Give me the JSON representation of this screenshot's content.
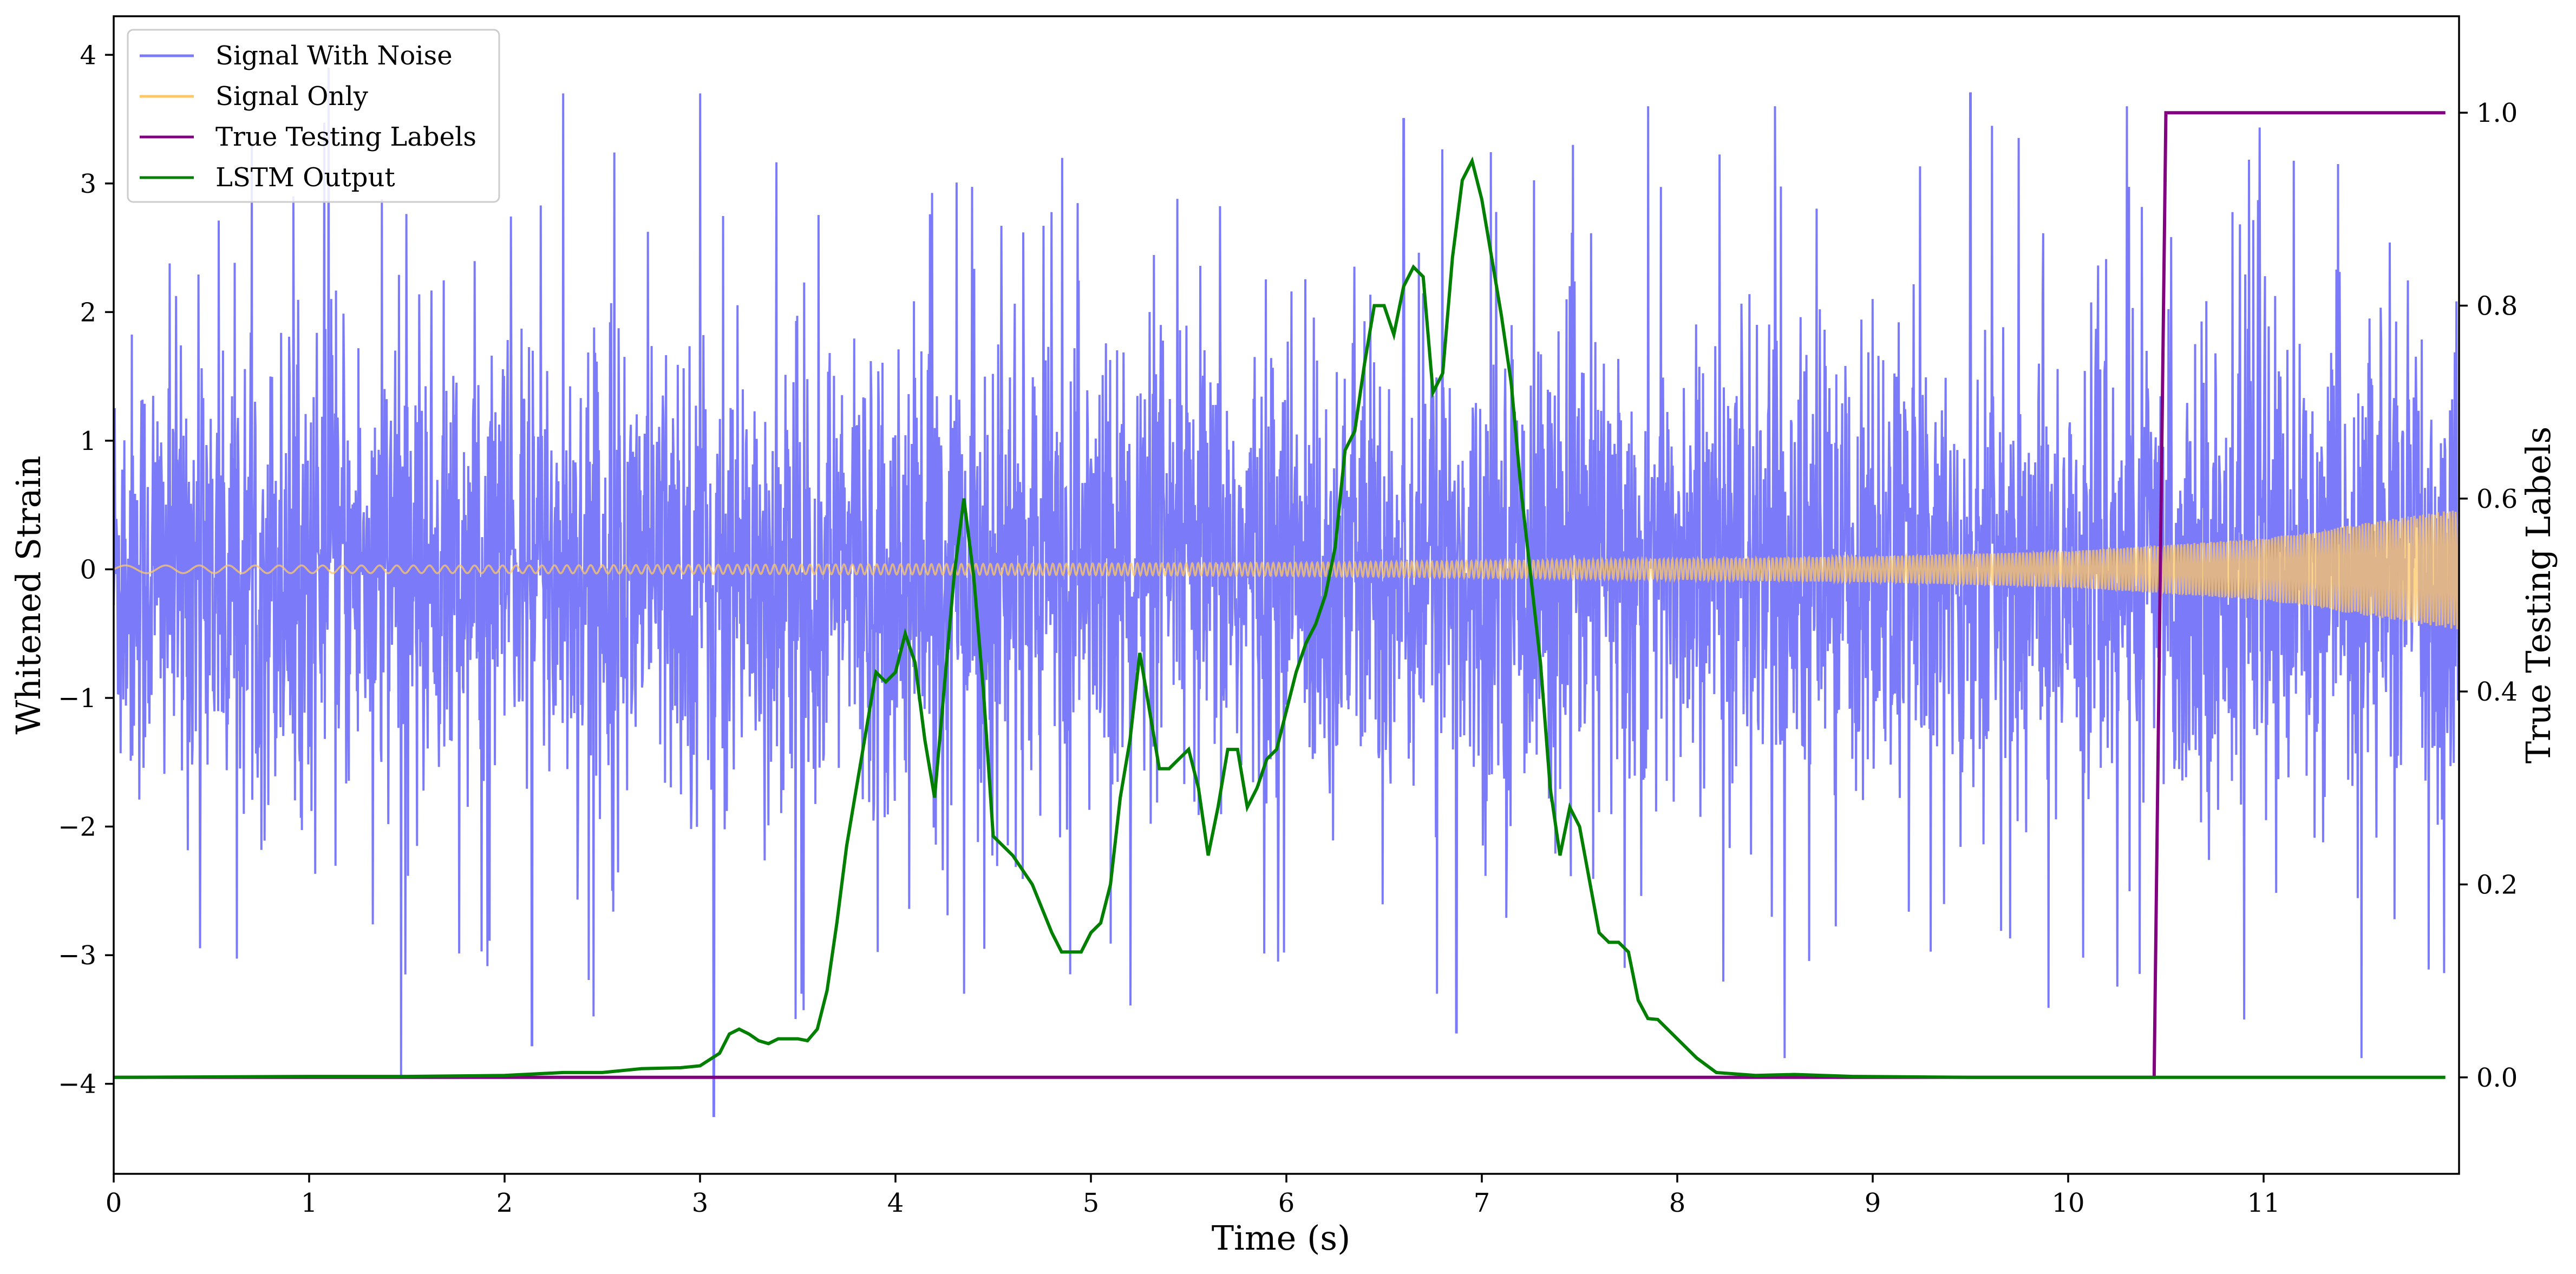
{
  "chart_data": {
    "type": "line",
    "xlabel": "Time (s)",
    "ylabel_left": "Whitened Strain",
    "ylabel_right": "True Testing Labels",
    "xlim": [
      0,
      12
    ],
    "ylim_left": [
      -4.7,
      4.3
    ],
    "ylim_right": [
      -0.1,
      1.1
    ],
    "x_ticks": [
      0,
      1,
      2,
      3,
      4,
      5,
      6,
      7,
      8,
      9,
      10,
      11
    ],
    "y_ticks_left": [
      -4,
      -3,
      -2,
      -1,
      0,
      1,
      2,
      3,
      4
    ],
    "y_ticks_right": [
      0.0,
      0.2,
      0.4,
      0.6,
      0.8,
      1.0
    ],
    "x_tick_labels": [
      "0",
      "1",
      "2",
      "3",
      "4",
      "5",
      "6",
      "7",
      "8",
      "9",
      "10",
      "11"
    ],
    "y_tick_labels_left": [
      "−4",
      "−3",
      "−2",
      "−1",
      "0",
      "1",
      "2",
      "3",
      "4"
    ],
    "y_tick_labels_right": [
      "0.0",
      "0.2",
      "0.4",
      "0.6",
      "0.8",
      "1.0"
    ],
    "grid": false,
    "legend_position": "top-left",
    "series": [
      {
        "name": "Signal With Noise",
        "axis": "left",
        "color": "#7b7bf9",
        "note": "dense noisy strain, approx std 0.9, peaks near ±3.7",
        "spikes": [
          [
            1.47,
            -3.95
          ],
          [
            2.14,
            -3.7
          ],
          [
            3.07,
            -4.25
          ],
          [
            3.52,
            -3.3
          ],
          [
            4.35,
            -3.3
          ],
          [
            6.77,
            -3.3
          ],
          [
            6.87,
            -3.6
          ],
          [
            8.55,
            -3.8
          ],
          [
            10.9,
            -3.5
          ],
          [
            11.5,
            -3.8
          ],
          [
            1.1,
            3.9
          ],
          [
            2.3,
            3.7
          ],
          [
            3.0,
            3.7
          ],
          [
            7.85,
            3.6
          ],
          [
            8.5,
            3.6
          ],
          [
            9.5,
            3.7
          ],
          [
            10.3,
            3.6
          ],
          [
            6.6,
            3.5
          ]
        ]
      },
      {
        "name": "Signal Only",
        "axis": "left",
        "color": "#ffc864",
        "note": "chirp with amplitude growing from 0.03 at t=0 to 0.47 at t=12",
        "envelope": [
          [
            0,
            0.03
          ],
          [
            2,
            0.03
          ],
          [
            4,
            0.04
          ],
          [
            6,
            0.05
          ],
          [
            8,
            0.08
          ],
          [
            9,
            0.1
          ],
          [
            10,
            0.14
          ],
          [
            11,
            0.24
          ],
          [
            12,
            0.47
          ]
        ]
      },
      {
        "name": "True Testing Labels",
        "axis": "right",
        "color": "#800080",
        "points": [
          [
            0,
            0.0
          ],
          [
            10.44,
            0.0
          ],
          [
            10.5,
            1.0
          ],
          [
            11.93,
            1.0
          ]
        ]
      },
      {
        "name": "LSTM Output",
        "axis": "right",
        "color": "#007f00",
        "points": [
          [
            0.0,
            0.0
          ],
          [
            1.0,
            0.001
          ],
          [
            1.5,
            0.001
          ],
          [
            2.0,
            0.002
          ],
          [
            2.3,
            0.005
          ],
          [
            2.5,
            0.005
          ],
          [
            2.7,
            0.009
          ],
          [
            2.9,
            0.01
          ],
          [
            3.0,
            0.012
          ],
          [
            3.1,
            0.025
          ],
          [
            3.15,
            0.045
          ],
          [
            3.2,
            0.05
          ],
          [
            3.25,
            0.045
          ],
          [
            3.3,
            0.038
          ],
          [
            3.35,
            0.035
          ],
          [
            3.4,
            0.04
          ],
          [
            3.45,
            0.04
          ],
          [
            3.5,
            0.04
          ],
          [
            3.55,
            0.038
          ],
          [
            3.6,
            0.05
          ],
          [
            3.65,
            0.09
          ],
          [
            3.7,
            0.16
          ],
          [
            3.75,
            0.24
          ],
          [
            3.8,
            0.3
          ],
          [
            3.85,
            0.36
          ],
          [
            3.9,
            0.42
          ],
          [
            3.95,
            0.41
          ],
          [
            4.0,
            0.42
          ],
          [
            4.05,
            0.46
          ],
          [
            4.1,
            0.43
          ],
          [
            4.15,
            0.35
          ],
          [
            4.2,
            0.29
          ],
          [
            4.3,
            0.52
          ],
          [
            4.35,
            0.6
          ],
          [
            4.4,
            0.52
          ],
          [
            4.45,
            0.4
          ],
          [
            4.5,
            0.25
          ],
          [
            4.6,
            0.23
          ],
          [
            4.7,
            0.2
          ],
          [
            4.8,
            0.15
          ],
          [
            4.85,
            0.13
          ],
          [
            4.95,
            0.13
          ],
          [
            5.0,
            0.15
          ],
          [
            5.05,
            0.16
          ],
          [
            5.1,
            0.2
          ],
          [
            5.15,
            0.29
          ],
          [
            5.2,
            0.35
          ],
          [
            5.25,
            0.44
          ],
          [
            5.3,
            0.38
          ],
          [
            5.35,
            0.32
          ],
          [
            5.4,
            0.32
          ],
          [
            5.45,
            0.33
          ],
          [
            5.5,
            0.34
          ],
          [
            5.55,
            0.3
          ],
          [
            5.6,
            0.23
          ],
          [
            5.65,
            0.28
          ],
          [
            5.7,
            0.34
          ],
          [
            5.75,
            0.34
          ],
          [
            5.8,
            0.28
          ],
          [
            5.85,
            0.3
          ],
          [
            5.9,
            0.33
          ],
          [
            5.95,
            0.34
          ],
          [
            6.0,
            0.38
          ],
          [
            6.05,
            0.42
          ],
          [
            6.1,
            0.45
          ],
          [
            6.15,
            0.47
          ],
          [
            6.2,
            0.5
          ],
          [
            6.25,
            0.55
          ],
          [
            6.3,
            0.65
          ],
          [
            6.35,
            0.67
          ],
          [
            6.4,
            0.74
          ],
          [
            6.45,
            0.8
          ],
          [
            6.5,
            0.8
          ],
          [
            6.55,
            0.77
          ],
          [
            6.6,
            0.82
          ],
          [
            6.65,
            0.84
          ],
          [
            6.7,
            0.83
          ],
          [
            6.75,
            0.71
          ],
          [
            6.8,
            0.73
          ],
          [
            6.85,
            0.85
          ],
          [
            6.9,
            0.93
          ],
          [
            6.95,
            0.95
          ],
          [
            7.0,
            0.91
          ],
          [
            7.05,
            0.85
          ],
          [
            7.1,
            0.79
          ],
          [
            7.15,
            0.72
          ],
          [
            7.2,
            0.61
          ],
          [
            7.25,
            0.52
          ],
          [
            7.3,
            0.43
          ],
          [
            7.35,
            0.3
          ],
          [
            7.4,
            0.23
          ],
          [
            7.45,
            0.28
          ],
          [
            7.5,
            0.26
          ],
          [
            7.6,
            0.15
          ],
          [
            7.65,
            0.14
          ],
          [
            7.7,
            0.14
          ],
          [
            7.75,
            0.13
          ],
          [
            7.8,
            0.08
          ],
          [
            7.85,
            0.061
          ],
          [
            7.9,
            0.06
          ],
          [
            8.0,
            0.04
          ],
          [
            8.1,
            0.02
          ],
          [
            8.2,
            0.005
          ],
          [
            8.4,
            0.002
          ],
          [
            8.6,
            0.003
          ],
          [
            8.9,
            0.001
          ],
          [
            9.5,
            0.0
          ],
          [
            10.0,
            0.0
          ],
          [
            11.93,
            0.0
          ]
        ]
      }
    ]
  },
  "legend": [
    {
      "label": "Signal With Noise",
      "color": "#7b7bf9"
    },
    {
      "label": "Signal Only",
      "color": "#ffc864"
    },
    {
      "label": "True Testing Labels",
      "color": "#800080"
    },
    {
      "label": "LSTM Output",
      "color": "#007f00"
    }
  ]
}
